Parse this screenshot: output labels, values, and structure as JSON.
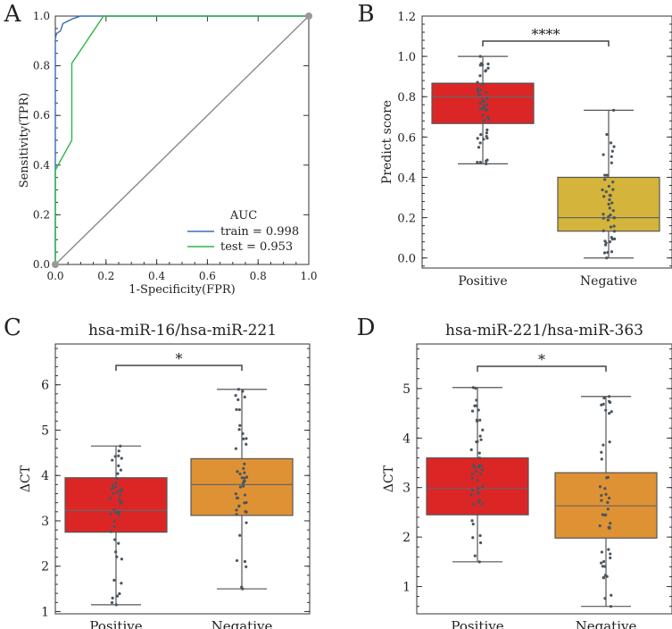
{
  "chart_data": [
    {
      "panel": "A",
      "type": "line",
      "title": "",
      "xlabel": "1-Specificity(FPR)",
      "ylabel": "Sensitivity(TPR)",
      "xlim": [
        0,
        1
      ],
      "ylim": [
        0,
        1
      ],
      "ticks": [
        "0.0",
        "0.2",
        "0.4",
        "0.6",
        "0.8",
        "1.0"
      ],
      "legend": {
        "title": "AUC",
        "placement": "bottom-right"
      },
      "series": [
        {
          "name": "train = 0.998",
          "color": "#3a6db5",
          "x": [
            0,
            0,
            0.005,
            0.02,
            0.03,
            0.05,
            0.07,
            0.1,
            0.15,
            1.0
          ],
          "y": [
            0,
            0.91,
            0.93,
            0.94,
            0.97,
            0.98,
            0.99,
            1.0,
            1.0,
            1.0
          ]
        },
        {
          "name": "test = 0.953",
          "color": "#2fb54a",
          "x": [
            0,
            0,
            0.065,
            0.065,
            0.065,
            0.19,
            1.0
          ],
          "y": [
            0,
            0.38,
            0.5,
            0.5,
            0.81,
            1.0,
            1.0
          ]
        },
        {
          "name": "",
          "color": "#888888",
          "x": [
            0,
            1
          ],
          "y": [
            0,
            1
          ]
        }
      ]
    },
    {
      "panel": "B",
      "type": "box",
      "title": "",
      "xlabel": "",
      "ylabel": "Predict score",
      "ylim": [
        -0.05,
        1.2
      ],
      "yticks": [
        "0.0",
        "0.2",
        "0.4",
        "0.6",
        "0.8",
        "1.0",
        "1.2"
      ],
      "categories": [
        "Positive",
        "Negative"
      ],
      "colors": [
        "#dc2626",
        "#d4b43a"
      ],
      "boxes": [
        {
          "min": 0.467,
          "q1": 0.667,
          "median": 0.8,
          "q3": 0.867,
          "max": 1.0
        },
        {
          "min": 0.0,
          "q1": 0.133,
          "median": 0.2,
          "q3": 0.4,
          "max": 0.733
        }
      ],
      "significance": "****"
    },
    {
      "panel": "C",
      "type": "box",
      "title": "hsa-miR-16/hsa-miR-221",
      "xlabel": "",
      "ylabel": "ΔCT",
      "ylim": [
        0.95,
        6.9
      ],
      "yticks": [
        "1",
        "2",
        "3",
        "4",
        "5",
        "6"
      ],
      "categories": [
        "Positive",
        "Negative"
      ],
      "colors": [
        "#dc2626",
        "#df9234"
      ],
      "boxes": [
        {
          "min": 1.15,
          "q1": 2.75,
          "median": 3.23,
          "q3": 3.95,
          "max": 4.65
        },
        {
          "min": 1.5,
          "q1": 3.12,
          "median": 3.8,
          "q3": 4.37,
          "max": 5.9
        }
      ],
      "significance": "*"
    },
    {
      "panel": "D",
      "type": "box",
      "title": "hsa-miR-221/hsa-miR-363",
      "xlabel": "",
      "ylabel": "ΔCT",
      "ylim": [
        0.45,
        5.9
      ],
      "yticks": [
        "1",
        "2",
        "3",
        "4",
        "5"
      ],
      "categories": [
        "Positive",
        "Negative"
      ],
      "colors": [
        "#dc2626",
        "#df9234"
      ],
      "boxes": [
        {
          "min": 1.5,
          "q1": 2.45,
          "median": 2.98,
          "q3": 3.6,
          "max": 5.02
        },
        {
          "min": 0.6,
          "q1": 1.98,
          "median": 2.63,
          "q3": 3.3,
          "max": 4.84
        }
      ],
      "significance": "*"
    }
  ],
  "panel_labels": [
    "A",
    "B",
    "C",
    "D"
  ]
}
